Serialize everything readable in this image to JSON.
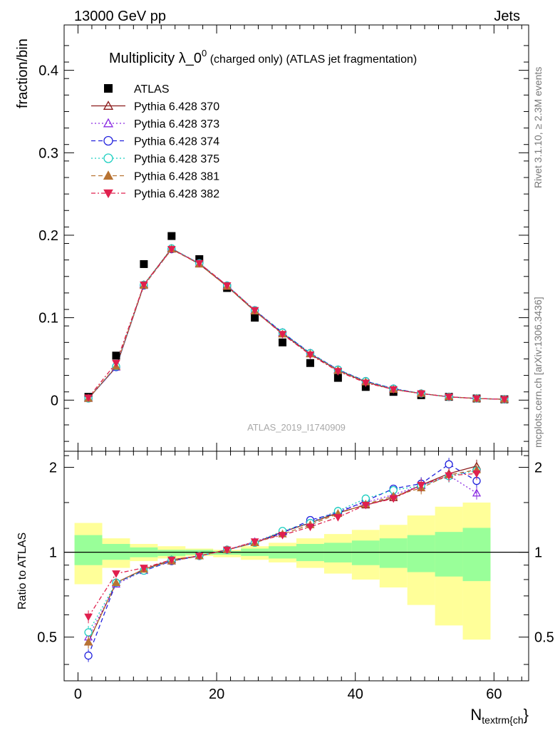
{
  "header": {
    "left": "13000 GeV pp",
    "right": "Jets",
    "side_top": "Rivet 3.1.10, ≥ 2.3M events",
    "side_bottom": "mcplots.cern.ch [arXiv:1306.3436]",
    "watermark": "ATLAS_2019_I1740909"
  },
  "chart_data": [
    {
      "type": "scatter",
      "title": "Multiplicity λ_0⁰ (charged only) (ATLAS jet fragmentation)",
      "title_main": "Multiplicity λ_0",
      "title_sup": "0",
      "title_rest": " (charged only) (ATLAS jet fragmentation)",
      "ylabel": "fraction/bin",
      "xlim": [
        -2,
        65
      ],
      "ylim": [
        -0.062,
        0.455
      ],
      "yticks": [
        0,
        0.1,
        0.2,
        0.3,
        0.4
      ],
      "ytick_labels": [
        "0",
        "0.1",
        "0.2",
        "0.3",
        "0.4"
      ],
      "x": [
        1.5,
        5.5,
        9.5,
        13.5,
        17.5,
        21.5,
        25.5,
        29.5,
        33.5,
        37.5,
        41.5,
        45.5,
        49.5,
        53.5,
        57.5,
        61.5
      ],
      "series": [
        {
          "name": "ATLAS",
          "color": "#000000",
          "marker": "square-filled",
          "line": "none",
          "values": [
            0.004,
            0.054,
            0.165,
            0.199,
            0.171,
            0.136,
            0.1,
            0.07,
            0.045,
            0.027,
            0.016,
            0.01,
            0.006,
            0.004,
            0.002,
            0.001
          ]
        },
        {
          "name": "Pythia 6.428 370",
          "color": "#8b1a1a",
          "marker": "triangle-open",
          "line": "solid",
          "values": [
            0.002,
            0.04,
            0.14,
            0.184,
            0.165,
            0.138,
            0.108,
            0.081,
            0.056,
            0.036,
            0.022,
            0.013,
            0.008,
            0.004,
            0.002,
            0.001
          ]
        },
        {
          "name": "Pythia 6.428 373",
          "color": "#8a2be2",
          "marker": "triangle-open",
          "line": "dotted",
          "values": [
            0.002,
            0.04,
            0.139,
            0.183,
            0.166,
            0.139,
            0.109,
            0.082,
            0.057,
            0.037,
            0.023,
            0.014,
            0.008,
            0.004,
            0.002,
            0.001
          ]
        },
        {
          "name": "Pythia 6.428 374",
          "color": "#2222dd",
          "marker": "circle-open",
          "line": "dashed",
          "values": [
            0.002,
            0.04,
            0.139,
            0.183,
            0.166,
            0.139,
            0.109,
            0.082,
            0.057,
            0.037,
            0.023,
            0.014,
            0.008,
            0.004,
            0.002,
            0.001
          ]
        },
        {
          "name": "Pythia 6.428 375",
          "color": "#1ccfc0",
          "marker": "circle-open",
          "line": "dotted",
          "values": [
            0.002,
            0.041,
            0.14,
            0.184,
            0.166,
            0.139,
            0.109,
            0.082,
            0.057,
            0.037,
            0.023,
            0.014,
            0.008,
            0.004,
            0.002,
            0.001
          ]
        },
        {
          "name": "Pythia 6.428 381",
          "color": "#b87333",
          "marker": "triangle-filled",
          "line": "dashed",
          "values": [
            0.002,
            0.041,
            0.139,
            0.183,
            0.165,
            0.138,
            0.108,
            0.08,
            0.056,
            0.036,
            0.022,
            0.013,
            0.008,
            0.004,
            0.002,
            0.001
          ]
        },
        {
          "name": "Pythia 6.428 382",
          "color": "#e0204e",
          "marker": "triangle-down-filled",
          "line": "dashdot",
          "values": [
            0.003,
            0.045,
            0.14,
            0.183,
            0.166,
            0.139,
            0.109,
            0.08,
            0.055,
            0.035,
            0.021,
            0.013,
            0.008,
            0.004,
            0.002,
            0.001
          ]
        }
      ],
      "legend_position": "top-left"
    },
    {
      "type": "line",
      "ylabel": "Ratio to ATLAS",
      "xlabel": "N_textrm{ch}",
      "xlabel_main": "N",
      "xlabel_sub": "textrm{ch",
      "xlabel_end": "}",
      "xlim": [
        -2,
        65
      ],
      "ylim": [
        0.35,
        2.28
      ],
      "xticks": [
        0,
        20,
        40,
        60
      ],
      "xtick_labels": [
        "0",
        "20",
        "40",
        "60"
      ],
      "yticks": [
        0.5,
        1,
        2
      ],
      "ytick_labels": [
        "0.5",
        "1",
        "2"
      ],
      "bands": {
        "x_edges": [
          -0.5,
          3.5,
          7.5,
          11.5,
          15.5,
          19.5,
          23.5,
          27.5,
          31.5,
          35.5,
          39.5,
          43.5,
          47.5,
          51.5,
          55.5,
          59.5
        ],
        "green": [
          [
            0.9,
            1.15
          ],
          [
            0.94,
            1.07
          ],
          [
            0.96,
            1.04
          ],
          [
            0.97,
            1.02
          ],
          [
            0.98,
            1.02
          ],
          [
            0.98,
            1.01
          ],
          [
            0.97,
            1.03
          ],
          [
            0.95,
            1.05
          ],
          [
            0.93,
            1.07
          ],
          [
            0.92,
            1.08
          ],
          [
            0.9,
            1.1
          ],
          [
            0.88,
            1.12
          ],
          [
            0.85,
            1.15
          ],
          [
            0.82,
            1.18
          ],
          [
            0.79,
            1.22
          ]
        ],
        "yellow": [
          [
            0.77,
            1.27
          ],
          [
            0.88,
            1.12
          ],
          [
            0.93,
            1.07
          ],
          [
            0.95,
            1.05
          ],
          [
            0.97,
            1.03
          ],
          [
            0.96,
            1.02
          ],
          [
            0.94,
            1.05
          ],
          [
            0.92,
            1.08
          ],
          [
            0.88,
            1.12
          ],
          [
            0.84,
            1.16
          ],
          [
            0.8,
            1.2
          ],
          [
            0.75,
            1.25
          ],
          [
            0.65,
            1.35
          ],
          [
            0.55,
            1.45
          ],
          [
            0.49,
            1.5
          ]
        ],
        "green_color": "#99ff99",
        "yellow_color": "#ffff99"
      },
      "x": [
        1.5,
        5.5,
        9.5,
        13.5,
        17.5,
        21.5,
        25.5,
        29.5,
        33.5,
        37.5,
        41.5,
        45.5,
        49.5,
        53.5,
        57.5
      ],
      "series": [
        {
          "name": "Pythia 6.428 370",
          "color": "#8b1a1a",
          "marker": "triangle-open",
          "line": "solid",
          "values": [
            0.48,
            0.78,
            0.87,
            0.94,
            0.97,
            1.02,
            1.08,
            1.18,
            1.27,
            1.38,
            1.47,
            1.56,
            1.73,
            1.9,
            2.02
          ]
        },
        {
          "name": "Pythia 6.428 373",
          "color": "#8a2be2",
          "marker": "triangle-open",
          "line": "dotted",
          "values": [
            0.5,
            0.77,
            0.86,
            0.93,
            0.97,
            1.02,
            1.09,
            1.18,
            1.28,
            1.4,
            1.5,
            1.6,
            1.72,
            1.87,
            1.62
          ]
        },
        {
          "name": "Pythia 6.428 374",
          "color": "#2222dd",
          "marker": "circle-open",
          "line": "dashed",
          "values": [
            0.43,
            0.78,
            0.86,
            0.93,
            0.97,
            1.02,
            1.08,
            1.17,
            1.3,
            1.38,
            1.52,
            1.68,
            1.75,
            2.05,
            1.79
          ]
        },
        {
          "name": "Pythia 6.428 375",
          "color": "#1ccfc0",
          "marker": "circle-open",
          "line": "dotted",
          "values": [
            0.52,
            0.78,
            0.86,
            0.94,
            0.97,
            1.02,
            1.08,
            1.19,
            1.27,
            1.4,
            1.55,
            1.66,
            1.72,
            1.86,
            1.95
          ]
        },
        {
          "name": "Pythia 6.428 381",
          "color": "#b87333",
          "marker": "triangle-filled",
          "line": "dashed",
          "values": [
            0.48,
            0.78,
            0.87,
            0.93,
            0.97,
            1.02,
            1.08,
            1.16,
            1.25,
            1.37,
            1.48,
            1.58,
            1.69,
            1.88,
            1.96
          ]
        },
        {
          "name": "Pythia 6.428 382",
          "color": "#e0204e",
          "marker": "triangle-down-filled",
          "line": "dashdot",
          "values": [
            0.59,
            0.84,
            0.88,
            0.94,
            0.97,
            1.02,
            1.09,
            1.15,
            1.23,
            1.33,
            1.47,
            1.55,
            1.73,
            1.87,
            1.9
          ]
        }
      ]
    }
  ]
}
